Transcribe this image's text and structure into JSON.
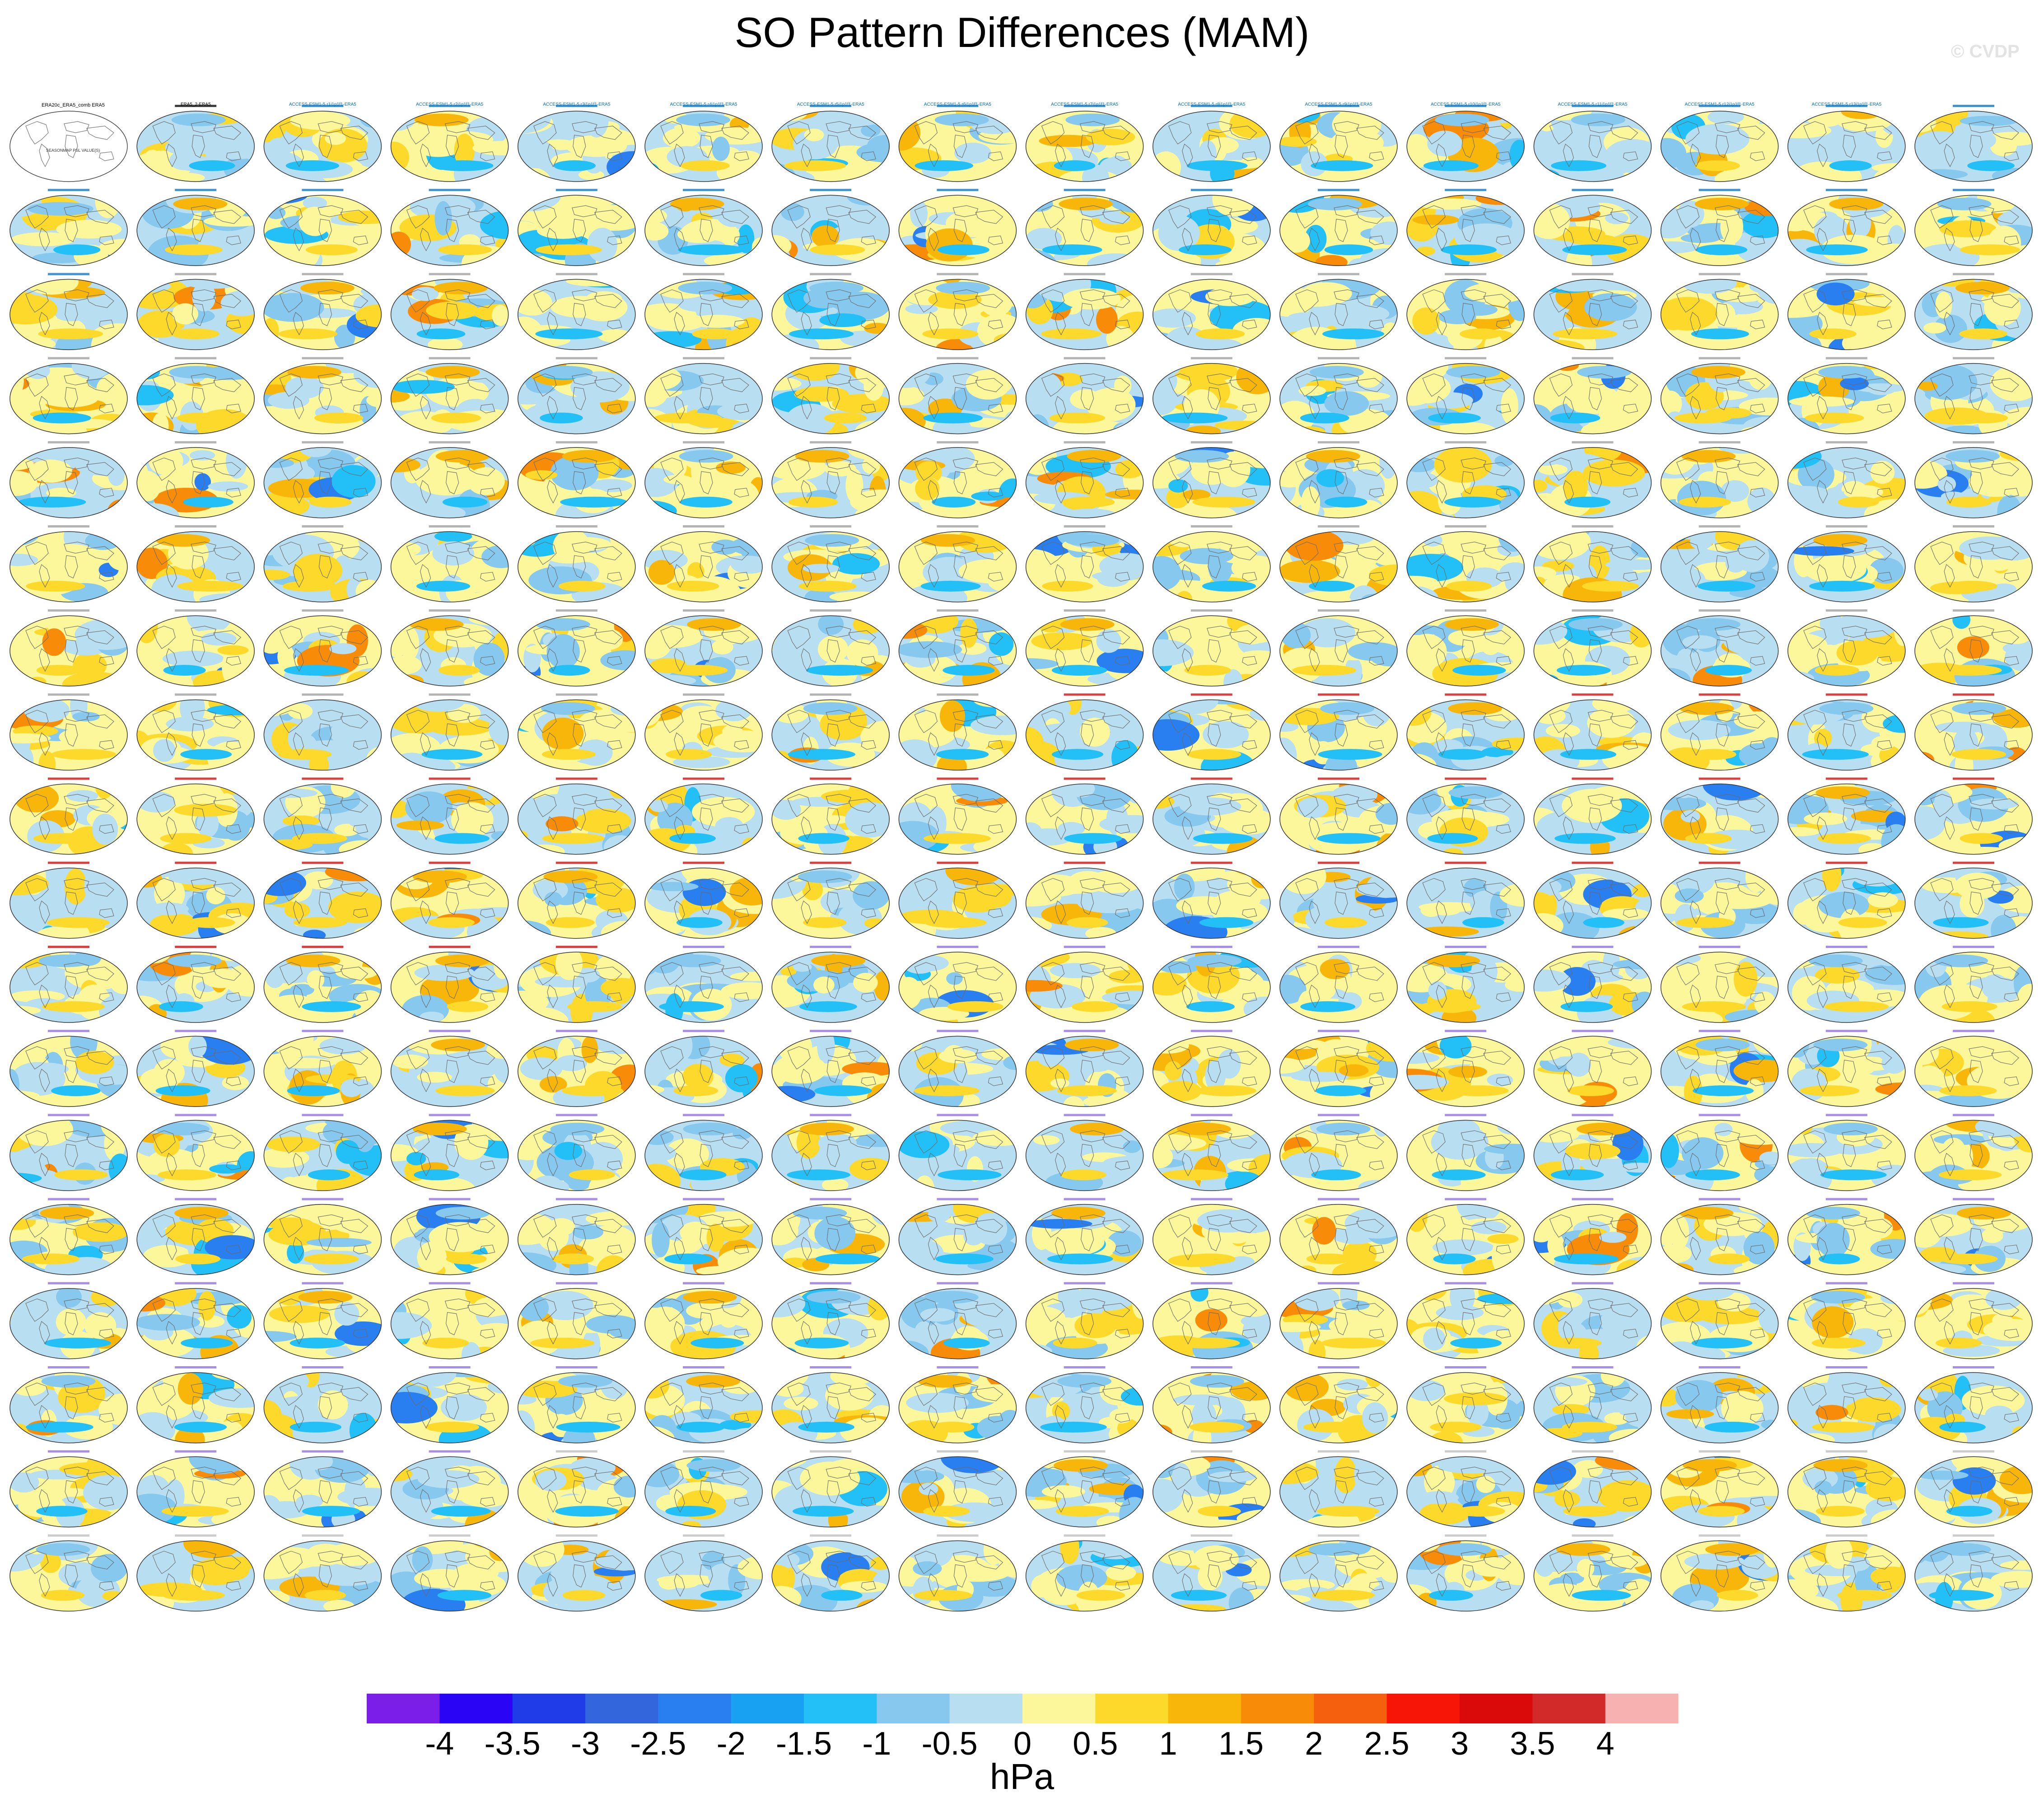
{
  "title": "SO Pattern Differences (MAM)",
  "watermark": "© CVDP",
  "grid": {
    "rows": 18,
    "cols": 16,
    "first_panel": {
      "title": "ERA20c_ERA5_comb ERA5",
      "subtitle": "SEASONMAP PSL VALUE(S)"
    }
  },
  "panels": [
    {
      "name": "ERA5_2-ERA5",
      "group": "reference"
    },
    {
      "name": "ACCESS-ESM1-5 r1i1p1f1-ERA5",
      "group": "ACCESS"
    },
    {
      "name": "ACCESS-ESM1-5 r2i1p1f1-ERA5",
      "group": "ACCESS"
    },
    {
      "name": "ACCESS-ESM1-5 r3i1p1f1-ERA5",
      "group": "ACCESS"
    },
    {
      "name": "ACCESS-ESM1-5 r4i1p1f1-ERA5",
      "group": "ACCESS"
    },
    {
      "name": "ACCESS-ESM1-5 r5i1p1f1-ERA5",
      "group": "ACCESS"
    },
    {
      "name": "ACCESS-ESM1-5 r6i1p1f1-ERA5",
      "group": "ACCESS"
    },
    {
      "name": "ACCESS-ESM1-5 r7i1p1f1-ERA5",
      "group": "ACCESS"
    },
    {
      "name": "ACCESS-ESM1-5 r8i1p1f1-ERA5",
      "group": "ACCESS"
    },
    {
      "name": "ACCESS-ESM1-5 r9i1p1f1-ERA5",
      "group": "ACCESS"
    },
    {
      "name": "ACCESS-ESM1-5 r10i1p1f1-ERA5",
      "group": "ACCESS"
    },
    {
      "name": "ACCESS-ESM1-5 r11i1p1f1-ERA5",
      "group": "ACCESS"
    },
    {
      "name": "ACCESS-ESM1-5 r12i1p1f1-ERA5",
      "group": "ACCESS"
    },
    {
      "name": "ACCESS-ESM1-5 r13i1p1f1-ERA5",
      "group": "ACCESS"
    }
  ],
  "colorbar": {
    "units": "hPa",
    "ticks": [
      "-4",
      "-3.5",
      "-3",
      "-2.5",
      "-2",
      "-1.5",
      "-1",
      "-0.5",
      "0",
      "0.5",
      "1",
      "1.5",
      "2",
      "2.5",
      "3",
      "3.5",
      "4"
    ],
    "colors": [
      "#7b1fe8",
      "#2a05f5",
      "#1f3ce8",
      "#3366dd",
      "#2a7ff0",
      "#18a0f2",
      "#22c0f7",
      "#86c8ee",
      "#b8def2",
      "#fbf79a",
      "#fcd92a",
      "#f9b60a",
      "#f88c08",
      "#f5600f",
      "#f71508",
      "#db0a0a",
      "#d22a28",
      "#f8b1b1"
    ]
  },
  "panel_label_colors": {
    "ACCESS": "#0070c0",
    "CanESM": "#999999",
    "CESM1": "#cc0000",
    "CESM2": "#8a6ae0",
    "CMIP6": "#bbbbbb",
    "reference": "#000000"
  }
}
